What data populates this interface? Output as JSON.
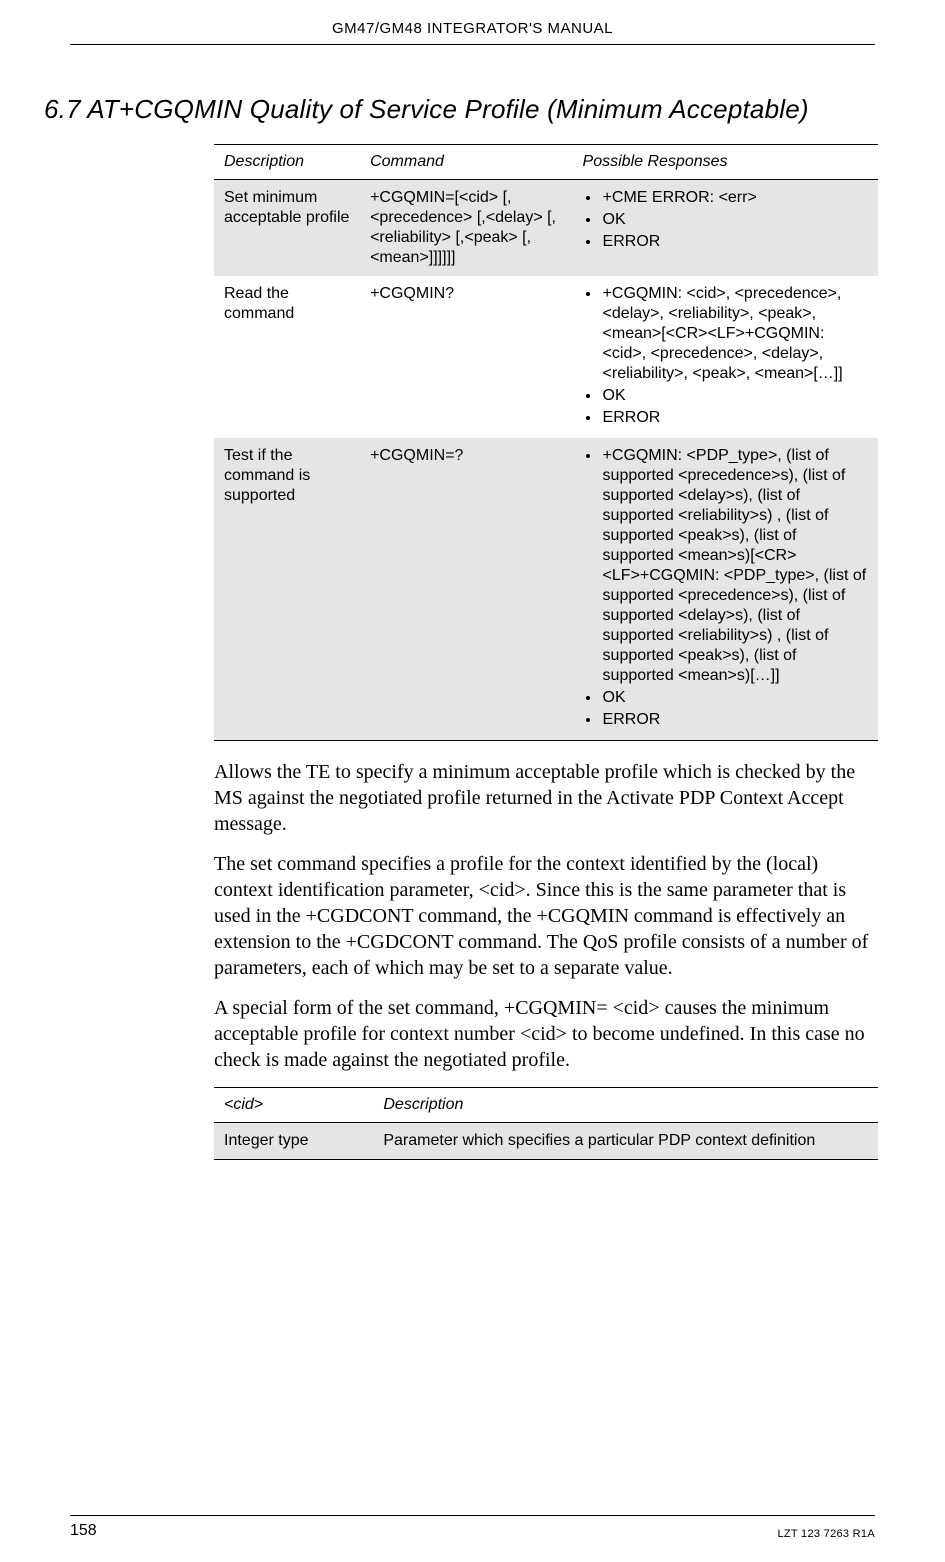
{
  "header": {
    "title": "GM47/GM48 INTEGRATOR'S MANUAL"
  },
  "section": {
    "title": "6.7 AT+CGQMIN Quality of Service Profile (Minimum Acceptable)"
  },
  "cmdTable": {
    "headers": {
      "c1": "Description",
      "c2": "Command",
      "c3": "Possible Responses"
    },
    "rows": [
      {
        "desc": "Set minimum acceptable profile",
        "cmd": "+CGQMIN=[<cid> [,<precedence> [,<delay> [,<reliability> [,<peak> [,<mean>]]]]]]",
        "resps": [
          "+CME ERROR: <err>",
          "OK",
          "ERROR"
        ]
      },
      {
        "desc": "Read the command",
        "cmd": "+CGQMIN?",
        "resps": [
          "+CGQMIN: <cid>, <precedence>, <delay>, <reliability>, <peak>, <mean>[<CR><LF>+CGQMIN: <cid>, <precedence>, <delay>, <reliability>, <peak>, <mean>[…]]",
          "OK",
          "ERROR"
        ]
      },
      {
        "desc": "Test if the command is supported",
        "cmd": "+CGQMIN=?",
        "resps": [
          "+CGQMIN: <PDP_type>, (list of supported <precedence>s), (list of supported <delay>s), (list of supported <reliability>s) , (list of supported <peak>s), (list of supported <mean>s)[<CR><LF>+CGQMIN: <PDP_type>, (list of supported <precedence>s), (list of supported <delay>s), (list of supported <reliability>s) , (list of supported <peak>s), (list of supported <mean>s)[…]]",
          "OK",
          "ERROR"
        ]
      }
    ]
  },
  "body": {
    "p1": "Allows the TE to specify a minimum acceptable profile which is checked by the MS against the negotiated profile returned in the Activate PDP Context Accept message.",
    "p2": "The set command specifies a profile for the context identified by the (local) context identification parameter, <cid>. Since this is the same parameter that is used in the +CGDCONT command, the +CGQMIN command is effectively an extension to the +CGDCONT command. The QoS profile consists of a number of parameters, each of which may be set to a separate value.",
    "p3": "A special form of the set command, +CGQMIN= <cid> causes the minimum acceptable profile for context number <cid> to become undefined. In this case no check is made against the negotiated profile."
  },
  "paramTable": {
    "headers": {
      "c1": "<cid>",
      "c2": "Description"
    },
    "rows": [
      {
        "c1": "Integer type",
        "c2": "Parameter which specifies a particular PDP context definition"
      }
    ]
  },
  "footer": {
    "pageNum": "158",
    "docId": "LZT 123 7263 R1A"
  }
}
